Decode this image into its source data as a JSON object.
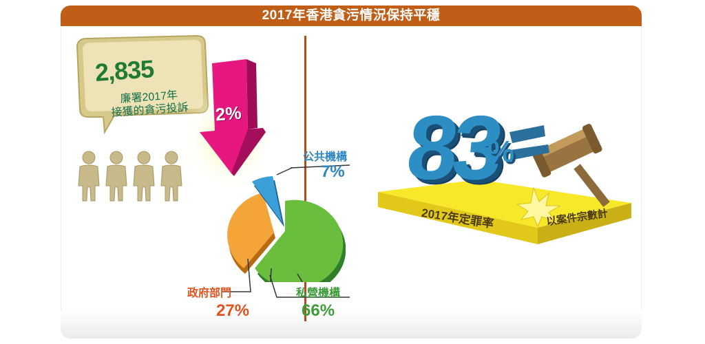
{
  "title": "2017年香港貪污情況保持平穩",
  "complaints": {
    "number": "2,835",
    "label_line1": "廉署2017年",
    "label_line2": "接獲的貪污投訴",
    "change": "2%"
  },
  "breakdown": [
    {
      "label": "公共機構",
      "value": "7%",
      "color": "#2f86c2"
    },
    {
      "label": "私營機構",
      "value": "66%",
      "color": "#3f9b3a"
    },
    {
      "label": "政府部門",
      "value": "27%",
      "color": "#e2531f"
    }
  ],
  "conviction": {
    "rate": "83",
    "percent_sign": "%",
    "label": "2017年定罪率",
    "note": "以案件宗數計"
  }
}
